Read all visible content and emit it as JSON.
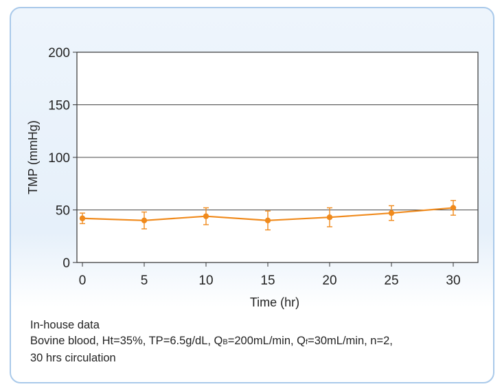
{
  "chart_data": {
    "type": "line",
    "xlabel": "Time (hr)",
    "ylabel": "TMP (mmHg)",
    "xlim": [
      0,
      30
    ],
    "ylim": [
      0,
      200
    ],
    "x_ticks": [
      "0",
      "5",
      "10",
      "15",
      "20",
      "25",
      "30"
    ],
    "y_ticks": [
      "0",
      "50",
      "100",
      "150",
      "200"
    ],
    "grid": true,
    "series": [
      {
        "color": "#f08a1c",
        "x": [
          0,
          5,
          10,
          15,
          20,
          25,
          30
        ],
        "y": [
          42,
          40,
          44,
          40,
          43,
          47,
          52
        ],
        "error": [
          5,
          8,
          8,
          9,
          9,
          7,
          7
        ]
      }
    ]
  },
  "caption": {
    "line1": "In-house data",
    "line2_a": "Bovine blood, Ht=35%, TP=6.5g/dL, Q",
    "line2_b_sub": "B",
    "line2_c": "=200mL/min, Q",
    "line2_d_sub": "f",
    "line2_e": "=30mL/min, n=2,",
    "line3": "30 hrs circulation"
  }
}
